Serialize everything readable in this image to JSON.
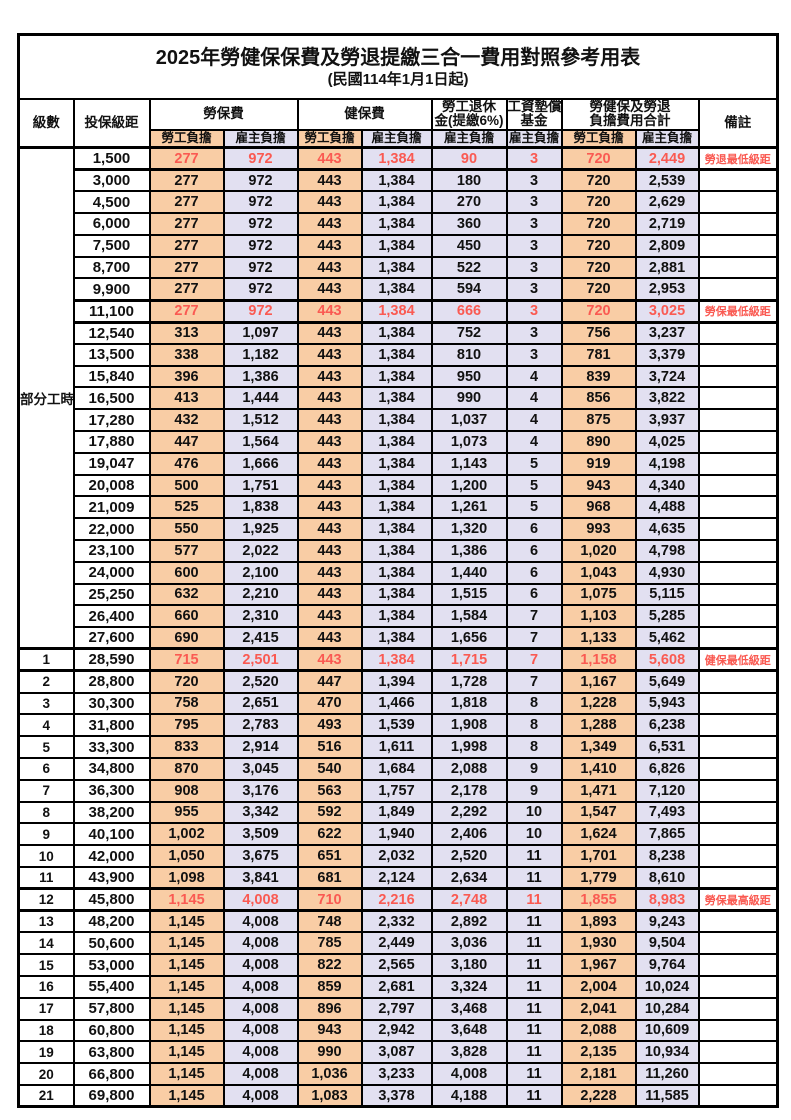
{
  "title": "2025年勞健保保費及勞退提繳三合一費用對照參考用表",
  "subtitle": "(民國114年1月1日起)",
  "colors": {
    "employee_bg": "#F9CDA5",
    "employer_bg": "#E2E0F1",
    "highlight_text": "#FA5A52",
    "border": "#000000"
  },
  "header": {
    "level": "級數",
    "bracket": "投保級距",
    "labor_ins": "勞保費",
    "health_ins": "健保費",
    "pension_l1": "勞工退休",
    "pension_l2": "金(提繳6%)",
    "wage_fund_l1": "工資墊償",
    "wage_fund_l2": "基金",
    "total_l1": "勞健保及勞退",
    "total_l2": "負擔費用合計",
    "note": "備註",
    "employee": "勞工負擔",
    "employer": "雇主負擔"
  },
  "part_time_label": "部分工時",
  "part_time_rowspan": 23,
  "rows": [
    {
      "level": "",
      "bracket": "1,500",
      "cells": [
        "277",
        "972",
        "443",
        "1,384",
        "90",
        "3",
        "720",
        "2,449"
      ],
      "note": "勞退最低級距",
      "highlight": true
    },
    {
      "level": "",
      "bracket": "3,000",
      "cells": [
        "277",
        "972",
        "443",
        "1,384",
        "180",
        "3",
        "720",
        "2,539"
      ],
      "note": "",
      "highlight": false
    },
    {
      "level": "",
      "bracket": "4,500",
      "cells": [
        "277",
        "972",
        "443",
        "1,384",
        "270",
        "3",
        "720",
        "2,629"
      ],
      "note": "",
      "highlight": false
    },
    {
      "level": "",
      "bracket": "6,000",
      "cells": [
        "277",
        "972",
        "443",
        "1,384",
        "360",
        "3",
        "720",
        "2,719"
      ],
      "note": "",
      "highlight": false
    },
    {
      "level": "",
      "bracket": "7,500",
      "cells": [
        "277",
        "972",
        "443",
        "1,384",
        "450",
        "3",
        "720",
        "2,809"
      ],
      "note": "",
      "highlight": false
    },
    {
      "level": "",
      "bracket": "8,700",
      "cells": [
        "277",
        "972",
        "443",
        "1,384",
        "522",
        "3",
        "720",
        "2,881"
      ],
      "note": "",
      "highlight": false
    },
    {
      "level": "",
      "bracket": "9,900",
      "cells": [
        "277",
        "972",
        "443",
        "1,384",
        "594",
        "3",
        "720",
        "2,953"
      ],
      "note": "",
      "highlight": false
    },
    {
      "level": "",
      "bracket": "11,100",
      "cells": [
        "277",
        "972",
        "443",
        "1,384",
        "666",
        "3",
        "720",
        "3,025"
      ],
      "note": "勞保最低級距",
      "highlight": true
    },
    {
      "level": "",
      "bracket": "12,540",
      "cells": [
        "313",
        "1,097",
        "443",
        "1,384",
        "752",
        "3",
        "756",
        "3,237"
      ],
      "note": "",
      "highlight": false
    },
    {
      "level": "",
      "bracket": "13,500",
      "cells": [
        "338",
        "1,182",
        "443",
        "1,384",
        "810",
        "3",
        "781",
        "3,379"
      ],
      "note": "",
      "highlight": false
    },
    {
      "level": "",
      "bracket": "15,840",
      "cells": [
        "396",
        "1,386",
        "443",
        "1,384",
        "950",
        "4",
        "839",
        "3,724"
      ],
      "note": "",
      "highlight": false
    },
    {
      "level": "",
      "bracket": "16,500",
      "cells": [
        "413",
        "1,444",
        "443",
        "1,384",
        "990",
        "4",
        "856",
        "3,822"
      ],
      "note": "",
      "highlight": false
    },
    {
      "level": "",
      "bracket": "17,280",
      "cells": [
        "432",
        "1,512",
        "443",
        "1,384",
        "1,037",
        "4",
        "875",
        "3,937"
      ],
      "note": "",
      "highlight": false
    },
    {
      "level": "",
      "bracket": "17,880",
      "cells": [
        "447",
        "1,564",
        "443",
        "1,384",
        "1,073",
        "4",
        "890",
        "4,025"
      ],
      "note": "",
      "highlight": false
    },
    {
      "level": "",
      "bracket": "19,047",
      "cells": [
        "476",
        "1,666",
        "443",
        "1,384",
        "1,143",
        "5",
        "919",
        "4,198"
      ],
      "note": "",
      "highlight": false
    },
    {
      "level": "",
      "bracket": "20,008",
      "cells": [
        "500",
        "1,751",
        "443",
        "1,384",
        "1,200",
        "5",
        "943",
        "4,340"
      ],
      "note": "",
      "highlight": false
    },
    {
      "level": "",
      "bracket": "21,009",
      "cells": [
        "525",
        "1,838",
        "443",
        "1,384",
        "1,261",
        "5",
        "968",
        "4,488"
      ],
      "note": "",
      "highlight": false
    },
    {
      "level": "",
      "bracket": "22,000",
      "cells": [
        "550",
        "1,925",
        "443",
        "1,384",
        "1,320",
        "6",
        "993",
        "4,635"
      ],
      "note": "",
      "highlight": false
    },
    {
      "level": "",
      "bracket": "23,100",
      "cells": [
        "577",
        "2,022",
        "443",
        "1,384",
        "1,386",
        "6",
        "1,020",
        "4,798"
      ],
      "note": "",
      "highlight": false
    },
    {
      "level": "",
      "bracket": "24,000",
      "cells": [
        "600",
        "2,100",
        "443",
        "1,384",
        "1,440",
        "6",
        "1,043",
        "4,930"
      ],
      "note": "",
      "highlight": false
    },
    {
      "level": "",
      "bracket": "25,250",
      "cells": [
        "632",
        "2,210",
        "443",
        "1,384",
        "1,515",
        "6",
        "1,075",
        "5,115"
      ],
      "note": "",
      "highlight": false
    },
    {
      "level": "",
      "bracket": "26,400",
      "cells": [
        "660",
        "2,310",
        "443",
        "1,384",
        "1,584",
        "7",
        "1,103",
        "5,285"
      ],
      "note": "",
      "highlight": false
    },
    {
      "level": "",
      "bracket": "27,600",
      "cells": [
        "690",
        "2,415",
        "443",
        "1,384",
        "1,656",
        "7",
        "1,133",
        "5,462"
      ],
      "note": "",
      "highlight": false
    },
    {
      "level": "1",
      "bracket": "28,590",
      "cells": [
        "715",
        "2,501",
        "443",
        "1,384",
        "1,715",
        "7",
        "1,158",
        "5,608"
      ],
      "note": "健保最低級距",
      "highlight": true
    },
    {
      "level": "2",
      "bracket": "28,800",
      "cells": [
        "720",
        "2,520",
        "447",
        "1,394",
        "1,728",
        "7",
        "1,167",
        "5,649"
      ],
      "note": "",
      "highlight": false
    },
    {
      "level": "3",
      "bracket": "30,300",
      "cells": [
        "758",
        "2,651",
        "470",
        "1,466",
        "1,818",
        "8",
        "1,228",
        "5,943"
      ],
      "note": "",
      "highlight": false
    },
    {
      "level": "4",
      "bracket": "31,800",
      "cells": [
        "795",
        "2,783",
        "493",
        "1,539",
        "1,908",
        "8",
        "1,288",
        "6,238"
      ],
      "note": "",
      "highlight": false
    },
    {
      "level": "5",
      "bracket": "33,300",
      "cells": [
        "833",
        "2,914",
        "516",
        "1,611",
        "1,998",
        "8",
        "1,349",
        "6,531"
      ],
      "note": "",
      "highlight": false
    },
    {
      "level": "6",
      "bracket": "34,800",
      "cells": [
        "870",
        "3,045",
        "540",
        "1,684",
        "2,088",
        "9",
        "1,410",
        "6,826"
      ],
      "note": "",
      "highlight": false
    },
    {
      "level": "7",
      "bracket": "36,300",
      "cells": [
        "908",
        "3,176",
        "563",
        "1,757",
        "2,178",
        "9",
        "1,471",
        "7,120"
      ],
      "note": "",
      "highlight": false
    },
    {
      "level": "8",
      "bracket": "38,200",
      "cells": [
        "955",
        "3,342",
        "592",
        "1,849",
        "2,292",
        "10",
        "1,547",
        "7,493"
      ],
      "note": "",
      "highlight": false
    },
    {
      "level": "9",
      "bracket": "40,100",
      "cells": [
        "1,002",
        "3,509",
        "622",
        "1,940",
        "2,406",
        "10",
        "1,624",
        "7,865"
      ],
      "note": "",
      "highlight": false
    },
    {
      "level": "10",
      "bracket": "42,000",
      "cells": [
        "1,050",
        "3,675",
        "651",
        "2,032",
        "2,520",
        "11",
        "1,701",
        "8,238"
      ],
      "note": "",
      "highlight": false
    },
    {
      "level": "11",
      "bracket": "43,900",
      "cells": [
        "1,098",
        "3,841",
        "681",
        "2,124",
        "2,634",
        "11",
        "1,779",
        "8,610"
      ],
      "note": "",
      "highlight": false
    },
    {
      "level": "12",
      "bracket": "45,800",
      "cells": [
        "1,145",
        "4,008",
        "710",
        "2,216",
        "2,748",
        "11",
        "1,855",
        "8,983"
      ],
      "note": "勞保最高級距",
      "highlight": true
    },
    {
      "level": "13",
      "bracket": "48,200",
      "cells": [
        "1,145",
        "4,008",
        "748",
        "2,332",
        "2,892",
        "11",
        "1,893",
        "9,243"
      ],
      "note": "",
      "highlight": false
    },
    {
      "level": "14",
      "bracket": "50,600",
      "cells": [
        "1,145",
        "4,008",
        "785",
        "2,449",
        "3,036",
        "11",
        "1,930",
        "9,504"
      ],
      "note": "",
      "highlight": false
    },
    {
      "level": "15",
      "bracket": "53,000",
      "cells": [
        "1,145",
        "4,008",
        "822",
        "2,565",
        "3,180",
        "11",
        "1,967",
        "9,764"
      ],
      "note": "",
      "highlight": false
    },
    {
      "level": "16",
      "bracket": "55,400",
      "cells": [
        "1,145",
        "4,008",
        "859",
        "2,681",
        "3,324",
        "11",
        "2,004",
        "10,024"
      ],
      "note": "",
      "highlight": false
    },
    {
      "level": "17",
      "bracket": "57,800",
      "cells": [
        "1,145",
        "4,008",
        "896",
        "2,797",
        "3,468",
        "11",
        "2,041",
        "10,284"
      ],
      "note": "",
      "highlight": false
    },
    {
      "level": "18",
      "bracket": "60,800",
      "cells": [
        "1,145",
        "4,008",
        "943",
        "2,942",
        "3,648",
        "11",
        "2,088",
        "10,609"
      ],
      "note": "",
      "highlight": false
    },
    {
      "level": "19",
      "bracket": "63,800",
      "cells": [
        "1,145",
        "4,008",
        "990",
        "3,087",
        "3,828",
        "11",
        "2,135",
        "10,934"
      ],
      "note": "",
      "highlight": false
    },
    {
      "level": "20",
      "bracket": "66,800",
      "cells": [
        "1,145",
        "4,008",
        "1,036",
        "3,233",
        "4,008",
        "11",
        "2,181",
        "11,260"
      ],
      "note": "",
      "highlight": false
    },
    {
      "level": "21",
      "bracket": "69,800",
      "cells": [
        "1,145",
        "4,008",
        "1,083",
        "3,378",
        "4,188",
        "11",
        "2,228",
        "11,585"
      ],
      "note": "",
      "highlight": false
    }
  ],
  "value_column_styles": [
    "orange",
    "lav",
    "orange",
    "lav",
    "lav",
    "lav",
    "orange",
    "lav"
  ]
}
